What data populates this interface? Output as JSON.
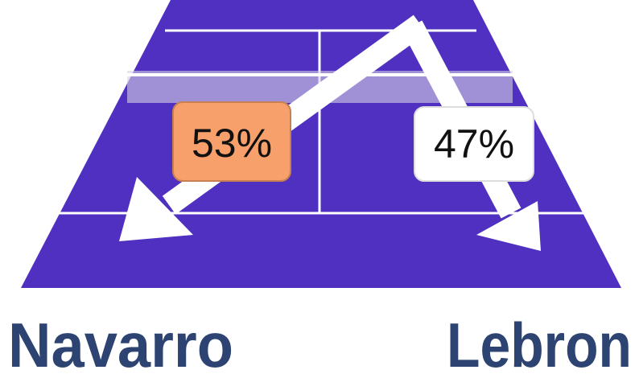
{
  "labels": {
    "left_share": "53%",
    "right_share": "47%"
  },
  "players": {
    "left": "Navarro",
    "right": "Lebron"
  }
}
